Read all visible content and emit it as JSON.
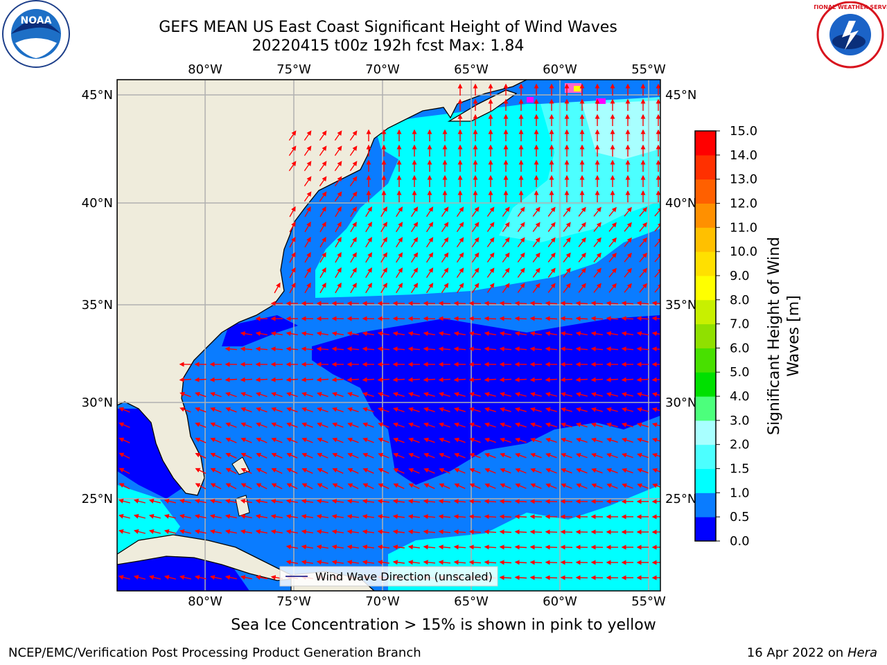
{
  "title": {
    "line1": "GEFS MEAN US East Coast Significant Height of Wind Waves",
    "line2": "20220415 t00z 192h fcst   Max: 1.84"
  },
  "map": {
    "lon_labels": [
      "80°W",
      "75°W",
      "70°W",
      "65°W",
      "60°W",
      "55°W"
    ],
    "lat_labels": [
      "45°N",
      "40°N",
      "35°N",
      "30°N",
      "25°N"
    ],
    "legend_label": "Wind Wave Direction (unscaled)",
    "arrow_color": "#ff0000",
    "land_color": "#efecdc"
  },
  "colorbar": {
    "label": "Significant Height of Wind Waves [m]",
    "label_line1": "Significant Height of Wind",
    "label_line2": "Waves [m]",
    "ticks": [
      "0.0",
      "0.5",
      "1.0",
      "1.5",
      "2.0",
      "3.0",
      "4.0",
      "5.0",
      "6.0",
      "7.0",
      "8.0",
      "9.0",
      "10.0",
      "11.0",
      "12.0",
      "13.0",
      "14.0",
      "15.0"
    ],
    "colors": [
      "#0000ff",
      "#0a7cff",
      "#00ffff",
      "#4cffff",
      "#a8ffff",
      "#4cff7c",
      "#00e000",
      "#48e000",
      "#90e000",
      "#c8f000",
      "#ffff00",
      "#ffe000",
      "#ffc000",
      "#ff9000",
      "#ff6000",
      "#ff3000",
      "#ff0000"
    ]
  },
  "caption": "Sea Ice Concentration > 15% is shown in pink to yellow",
  "footer": {
    "left": "NCEP/EMC/Verification Post Processing Product Generation Branch",
    "date": "16 Apr 2022 on",
    "machine": "Hera"
  },
  "logos": {
    "noaa": "NOAA",
    "nws": "NATIONAL WEATHER SERVICE"
  }
}
